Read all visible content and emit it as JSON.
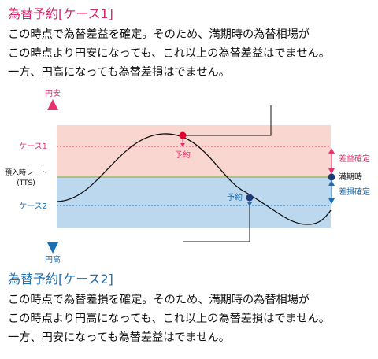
{
  "section1": {
    "title": "為替予約[ケース1]",
    "lines": [
      "この時点で為替差益を確定。そのため、満期時の為替相場が",
      "この時点より円安になっても、これ以上の為替差益はでません。",
      "一方、円高になっても為替差損はでません。"
    ]
  },
  "section2": {
    "title": "為替予約[ケース2]",
    "lines": [
      "この時点で為替差損を確定。そのため、満期時の為替相場が",
      "この時点より円高になっても、これ以上の為替差損はでません。",
      "一方、円安になっても為替差益はでません。"
    ]
  },
  "diagram": {
    "axis_top_label": "円安",
    "axis_bottom_label": "円高",
    "case1_label": "ケース1",
    "baseline_label_1": "預入時レート",
    "baseline_label_2": "(TTS)",
    "case2_label": "ケース2",
    "booking_label_1": "予約",
    "booking_label_2": "予約",
    "gain_fixed_label": "差益確定",
    "maturity_label": "満期時",
    "loss_fixed_label": "差損確定",
    "colors": {
      "pink": "#e8336f",
      "blue": "#1c6fb3",
      "gain_band": "#f9d7d0",
      "loss_band": "#bcd8ee",
      "baseline": "#8db35b",
      "navy": "#1f3a78",
      "red_dot": "#e6002d"
    }
  }
}
